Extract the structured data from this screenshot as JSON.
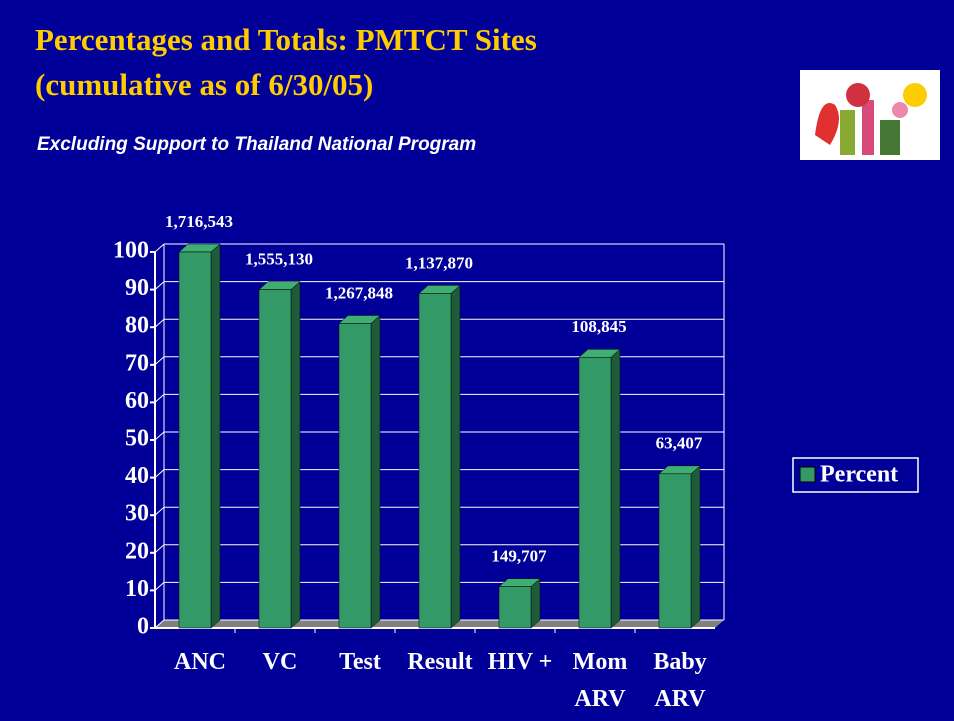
{
  "title": "Percentages and Totals: PMTCT Sites",
  "title_line2": "(cumulative as of 6/30/05)",
  "subtitle": "Excluding Support to Thailand National Program",
  "chart_data": {
    "type": "bar",
    "categories": [
      "ANC",
      "VC",
      "Test",
      "Result",
      "HIV +",
      "Mom\nARV",
      "Baby\nARV"
    ],
    "series": [
      {
        "name": "Percent",
        "color": "#339966",
        "values": [
          100,
          90,
          81,
          89,
          11,
          72,
          41
        ]
      }
    ],
    "annotations": [
      "1,716,543",
      "1,555,130",
      "1,267,848",
      "1,137,870",
      "149,707",
      "108,845",
      "63,407"
    ],
    "ylim": [
      0,
      100
    ],
    "yticks": [
      0,
      10,
      20,
      30,
      40,
      50,
      60,
      70,
      80,
      90,
      100
    ],
    "grid": true,
    "legend": "right"
  }
}
